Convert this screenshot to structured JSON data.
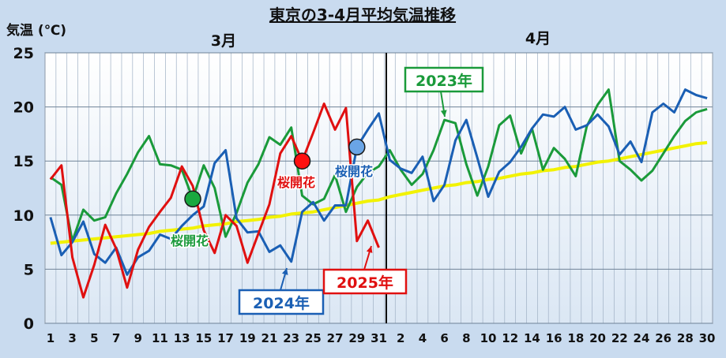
{
  "chart_data": {
    "type": "line",
    "title": "東京の3-4月平均気温推移",
    "ylabel": "気温 (℃)",
    "ylim": [
      0,
      25
    ],
    "yticks": [
      0,
      5,
      10,
      15,
      20,
      25
    ],
    "grid": true,
    "month_labels": [
      "3月",
      "4月"
    ],
    "x_tick_labels": [
      "1",
      "",
      "3",
      "",
      "5",
      "",
      "7",
      "",
      "9",
      "",
      "11",
      "",
      "13",
      "",
      "15",
      "",
      "17",
      "",
      "19",
      "",
      "21",
      "",
      "23",
      "",
      "25",
      "",
      "27",
      "",
      "29",
      "",
      "31",
      "",
      "2",
      "",
      "4",
      "",
      "6",
      "",
      "8",
      "",
      "10",
      "",
      "12",
      "",
      "14",
      "",
      "16",
      "",
      "18",
      "",
      "20",
      "",
      "22",
      "",
      "24",
      "",
      "26",
      "",
      "28",
      "",
      "30"
    ],
    "x_count": 61,
    "series": [
      {
        "name": "2023年",
        "color": "#1a9a3a",
        "values": [
          13.5,
          12.8,
          7.6,
          10.5,
          9.5,
          9.8,
          12.0,
          13.8,
          15.8,
          17.3,
          14.7,
          14.6,
          14.2,
          11.5,
          14.6,
          12.5,
          8.0,
          10.2,
          13.0,
          14.7,
          17.2,
          16.5,
          18.1,
          11.8,
          11.0,
          11.5,
          13.7,
          10.3,
          12.6,
          13.9,
          14.5,
          16.0,
          14.2,
          12.8,
          13.8,
          16.0,
          18.8,
          18.5,
          14.7,
          11.8,
          14.5,
          18.3,
          19.2,
          15.7,
          18.0,
          14.2,
          16.2,
          15.2,
          13.6,
          18.2,
          20.2,
          21.6,
          15.0,
          14.2,
          13.2,
          14.1,
          15.7,
          17.3,
          18.7,
          19.5,
          19.8
        ]
      },
      {
        "name": "2024年",
        "color": "#1a5fb4",
        "values": [
          9.8,
          6.3,
          7.5,
          9.4,
          6.4,
          5.6,
          7.0,
          4.5,
          6.1,
          6.7,
          8.2,
          7.8,
          9.0,
          10.0,
          10.8,
          14.8,
          16.0,
          9.7,
          8.4,
          8.5,
          6.6,
          7.2,
          5.7,
          10.3,
          11.2,
          9.5,
          10.9,
          10.9,
          16.3,
          17.9,
          19.4,
          15.1,
          14.3,
          13.9,
          15.4,
          11.3,
          12.8,
          16.9,
          18.8,
          15.3,
          11.7,
          14.0,
          14.9,
          16.3,
          18.0,
          19.3,
          19.1,
          20.0,
          17.9,
          18.3,
          19.3,
          18.2,
          15.6,
          16.8,
          14.9,
          19.5,
          20.3,
          19.5,
          21.6,
          21.1,
          20.8
        ]
      },
      {
        "name": "2025年",
        "color": "#e01010",
        "values": [
          13.3,
          14.6,
          6.1,
          2.4,
          5.4,
          9.1,
          6.9,
          3.3,
          6.8,
          8.9,
          10.3,
          11.6,
          14.5,
          12.7,
          8.6,
          6.5,
          10.0,
          9.0,
          5.6,
          8.3,
          11.0,
          15.7,
          17.3,
          15.0,
          17.6,
          20.3,
          17.9,
          19.9,
          7.6,
          9.5,
          7.0
        ]
      },
      {
        "name": "",
        "color": "#f2f200",
        "values": [
          7.4,
          7.5,
          7.6,
          7.7,
          7.8,
          7.9,
          8.0,
          8.1,
          8.2,
          8.3,
          8.5,
          8.6,
          8.7,
          8.8,
          9.0,
          9.1,
          9.2,
          9.4,
          9.5,
          9.6,
          9.8,
          9.9,
          10.1,
          10.2,
          10.3,
          10.5,
          10.7,
          10.9,
          11.1,
          11.3,
          11.4,
          11.7,
          11.9,
          12.1,
          12.3,
          12.5,
          12.7,
          12.8,
          13.0,
          13.1,
          13.3,
          13.4,
          13.6,
          13.8,
          13.9,
          14.1,
          14.2,
          14.4,
          14.5,
          14.7,
          14.9,
          15.0,
          15.2,
          15.4,
          15.6,
          15.8,
          16.0,
          16.2,
          16.4,
          16.6,
          16.7
        ]
      }
    ],
    "annotations": [
      {
        "text": "2023年",
        "series": 0,
        "color": "#1a9a3a"
      },
      {
        "text": "2024年",
        "series": 1,
        "color": "#1a5fb4"
      },
      {
        "text": "2025年",
        "series": 2,
        "color": "#e01010"
      },
      {
        "text": "桜開花",
        "series": 0,
        "color": "#1a9a3a",
        "marker_index": 13
      },
      {
        "text": "桜開花",
        "series": 2,
        "color": "#e01010",
        "marker_index": 23
      },
      {
        "text": "桜開花",
        "series": 1,
        "color": "#1a5fb4",
        "marker_index": 28
      }
    ]
  }
}
